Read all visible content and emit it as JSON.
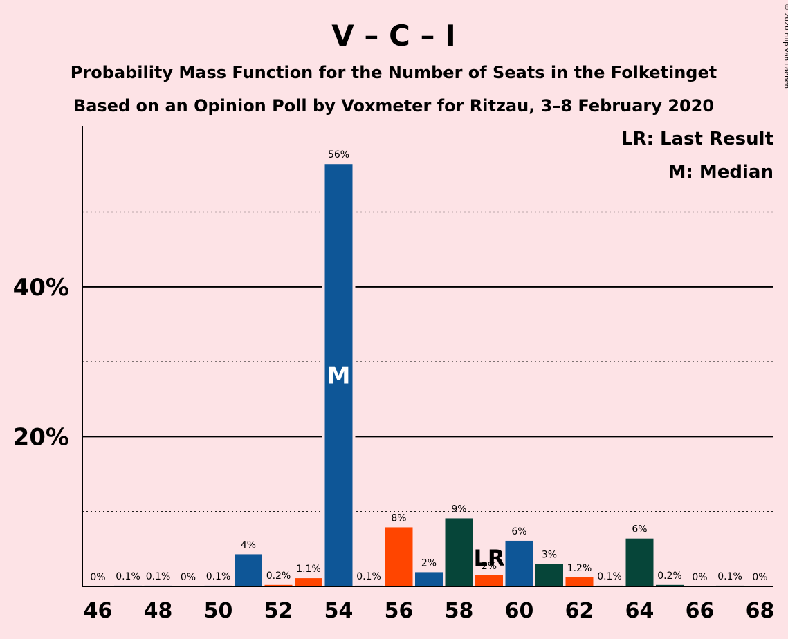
{
  "chart_data": {
    "type": "bar",
    "title": "V – C – I",
    "subtitle_lines": [
      "Probability Mass Function for the Number of Seats in the Folketinget",
      "Based on an Opinion Poll by Voxmeter for Ritzau, 3–8 February 2020"
    ],
    "legend": [
      "LR: Last Result",
      "M: Median"
    ],
    "legend_placement": "top-right",
    "copyright": "© 2020 Filip van Laenen",
    "x": [
      46,
      47,
      48,
      49,
      50,
      51,
      52,
      53,
      54,
      55,
      56,
      57,
      58,
      59,
      60,
      61,
      62,
      63,
      64,
      65,
      66,
      67,
      68
    ],
    "values": [
      0,
      0.1,
      0.1,
      0,
      0.1,
      4.3,
      0.2,
      1.1,
      56.4,
      0.1,
      7.9,
      1.9,
      9.1,
      1.5,
      6.1,
      3.0,
      1.2,
      0.1,
      6.4,
      0.2,
      0,
      0.1,
      0
    ],
    "labels": [
      "0%",
      "0.1%",
      "0.1%",
      "0%",
      "0.1%",
      "4%",
      "0.2%",
      "1.1%",
      "56%",
      "0.1%",
      "8%",
      "2%",
      "9%",
      "2%",
      "6%",
      "3%",
      "1.2%",
      "0.1%",
      "6%",
      "0.2%",
      "0%",
      "0.1%",
      "0%"
    ],
    "bar_colors": [
      "#0e5697",
      "#0e5697",
      "#0e5697",
      "#0e5697",
      "#0e5697",
      "#0e5697",
      "#ff4500",
      "#ff4500",
      "#0e5697",
      "#0e5697",
      "#ff4500",
      "#0e5697",
      "#064539",
      "#ff4500",
      "#0e5697",
      "#064539",
      "#ff4500",
      "#064539",
      "#064539",
      "#064539",
      "#064539",
      "#064539",
      "#064539"
    ],
    "xtick_labels": [
      "46",
      "48",
      "50",
      "52",
      "54",
      "56",
      "58",
      "60",
      "62",
      "64",
      "66",
      "68"
    ],
    "ytick_labels": [
      "20%",
      "40%"
    ],
    "ylim": [
      0,
      61.5
    ],
    "grid_solid": [
      20,
      40
    ],
    "grid_dotted": [
      10,
      30,
      50
    ],
    "median_seat": 54,
    "median_marker": "M",
    "last_result_seat": 59,
    "last_result_marker": "LR",
    "colors": {
      "background": "#fde3e6",
      "blue": "#0e5697",
      "red": "#ff4500",
      "green": "#064539"
    }
  }
}
